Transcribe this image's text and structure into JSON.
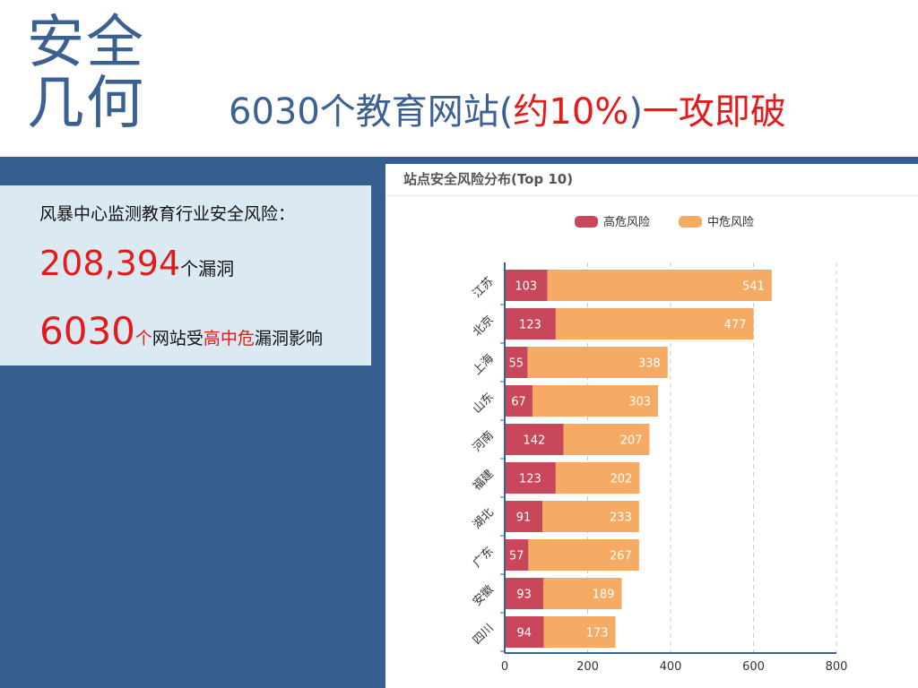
{
  "slide": {
    "logo_line1": "安全",
    "logo_line2": "几何",
    "headline_part1": "6030个教育网站(",
    "headline_part2": "约10%",
    "headline_part3": ")",
    "headline_part4": "一攻即破"
  },
  "stats": {
    "intro": "风暴中心监测教育行业安全风险：",
    "vuln_count": "208,394",
    "vuln_unit": "个漏洞",
    "site_count": "6030",
    "site_text_a": "个",
    "site_text_b": "网站受",
    "site_text_c": "高中危",
    "site_text_d": "漏洞影响"
  },
  "colors": {
    "high": "#c9475a",
    "mid": "#f5ab63",
    "brand": "#3a6191",
    "panel": "#365f90",
    "accent_red": "#e31b1b"
  },
  "chart_data": {
    "type": "bar",
    "orientation": "horizontal",
    "stacked": true,
    "title": "站点安全风险分布(Top 10)",
    "categories": [
      "江苏",
      "北京",
      "上海",
      "山东",
      "河南",
      "福建",
      "湖北",
      "广东",
      "安徽",
      "四川"
    ],
    "series": [
      {
        "name": "高危风险",
        "color": "#c9475a",
        "values": [
          103,
          123,
          55,
          67,
          142,
          123,
          91,
          57,
          93,
          94
        ]
      },
      {
        "name": "中危风险",
        "color": "#f5ab63",
        "values": [
          541,
          477,
          338,
          303,
          207,
          202,
          233,
          267,
          189,
          173
        ]
      }
    ],
    "xlim": [
      0,
      800
    ],
    "xticks": [
      0,
      200,
      400,
      600,
      800
    ],
    "grid": true,
    "legend": "top"
  }
}
